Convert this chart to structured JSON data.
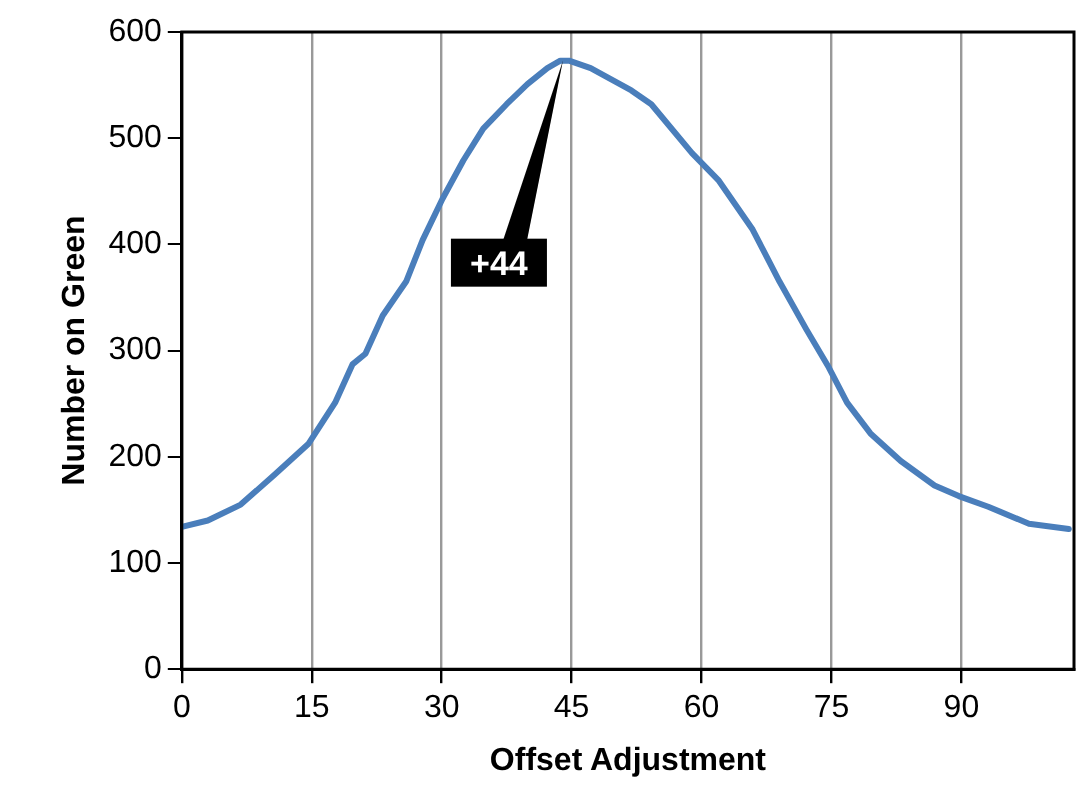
{
  "chart_data": {
    "type": "line",
    "xlabel": "Offset Adjustment",
    "ylabel": "Number on Green",
    "x": [
      0,
      3,
      6.8,
      10.7,
      14.6,
      17.7,
      19.7,
      21.2,
      23.2,
      25.9,
      27.8,
      30.1,
      32.5,
      34.8,
      37.5,
      39.9,
      42.2,
      43.7,
      44.7,
      47.2,
      51.9,
      54.2,
      58.9,
      62,
      65.9,
      69,
      72.1,
      74.7,
      76.8,
      79.5,
      83,
      86.9,
      89.7,
      93.1,
      97.8,
      102.4
    ],
    "series": [
      {
        "color": "#4a7ebb",
        "values": [
          134,
          140,
          155,
          183,
          212,
          251,
          287,
          297,
          333,
          365,
          404,
          443,
          479,
          509,
          532,
          551,
          566,
          573,
          573,
          566,
          545,
          532,
          486,
          460,
          414,
          365,
          320,
          284,
          251,
          222,
          196,
          173,
          163,
          153,
          137,
          132
        ]
      }
    ],
    "xlim": [
      0,
      103
    ],
    "xticks": [
      0,
      15,
      30,
      45,
      60,
      75,
      90
    ],
    "ylim": [
      0,
      600
    ],
    "yticks": [
      0,
      100,
      200,
      300,
      400,
      500,
      600
    ],
    "grid": "x",
    "legend": false,
    "marker": "none",
    "line_style": "solid",
    "annotations": [
      {
        "text": "+44",
        "x": 44,
        "y": 573
      }
    ]
  }
}
